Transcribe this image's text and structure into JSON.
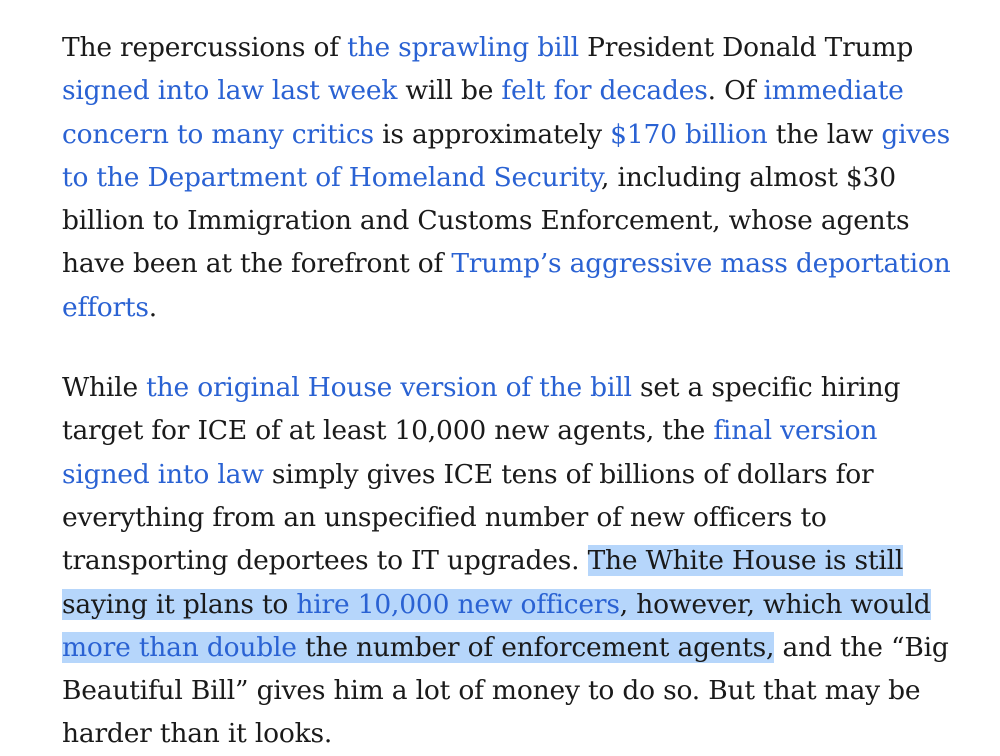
{
  "paragraphs": [
    {
      "segments": [
        {
          "type": "text",
          "text": "The repercussions of "
        },
        {
          "type": "link",
          "text": "the sprawling bill"
        },
        {
          "type": "text",
          "text": " President Donald Trump "
        },
        {
          "type": "link",
          "text": "signed into law last week"
        },
        {
          "type": "text",
          "text": " will be "
        },
        {
          "type": "link",
          "text": "felt for decades"
        },
        {
          "type": "text",
          "text": ". Of "
        },
        {
          "type": "link",
          "text": "immediate concern to many critics"
        },
        {
          "type": "text",
          "text": " is approximately "
        },
        {
          "type": "link",
          "text": "$170 billion"
        },
        {
          "type": "text",
          "text": " the law "
        },
        {
          "type": "link",
          "text": "gives to the Department of Homeland Security"
        },
        {
          "type": "text",
          "text": ", including almost $30 billion to Immigration and Customs Enforcement, whose agents have been at the forefront of "
        },
        {
          "type": "link",
          "text": "Trump’s aggressive mass deportation efforts"
        },
        {
          "type": "text",
          "text": "."
        }
      ]
    },
    {
      "segments": [
        {
          "type": "text",
          "text": "While "
        },
        {
          "type": "link",
          "text": "the original House version of the bill"
        },
        {
          "type": "text",
          "text": " set a specific hiring target for ICE of at least 10,000 new agents, the "
        },
        {
          "type": "link",
          "text": "final version signed into law"
        },
        {
          "type": "text",
          "text": " simply gives ICE tens of billions of dollars for everything from an unspecified number of new officers to transporting deportees to IT upgrades. "
        },
        {
          "type": "text",
          "text": "The White House is still saying it plans to ",
          "selected": true
        },
        {
          "type": "link",
          "text": "hire 10,000 new officers",
          "selected": true
        },
        {
          "type": "text",
          "text": ", however, which would ",
          "selected": true
        },
        {
          "type": "link",
          "text": "more than double",
          "selected": true
        },
        {
          "type": "text",
          "text": " the number of enforcement agents,",
          "selected": true
        },
        {
          "type": "text",
          "text": " and the “Big Beautiful Bill” gives him a lot of money to do so. But that may be harder than it looks."
        }
      ]
    }
  ],
  "colors": {
    "text": "#1a1a1a",
    "link": "#2a62d3",
    "selection": "#b6d6fb",
    "background": "#ffffff"
  }
}
